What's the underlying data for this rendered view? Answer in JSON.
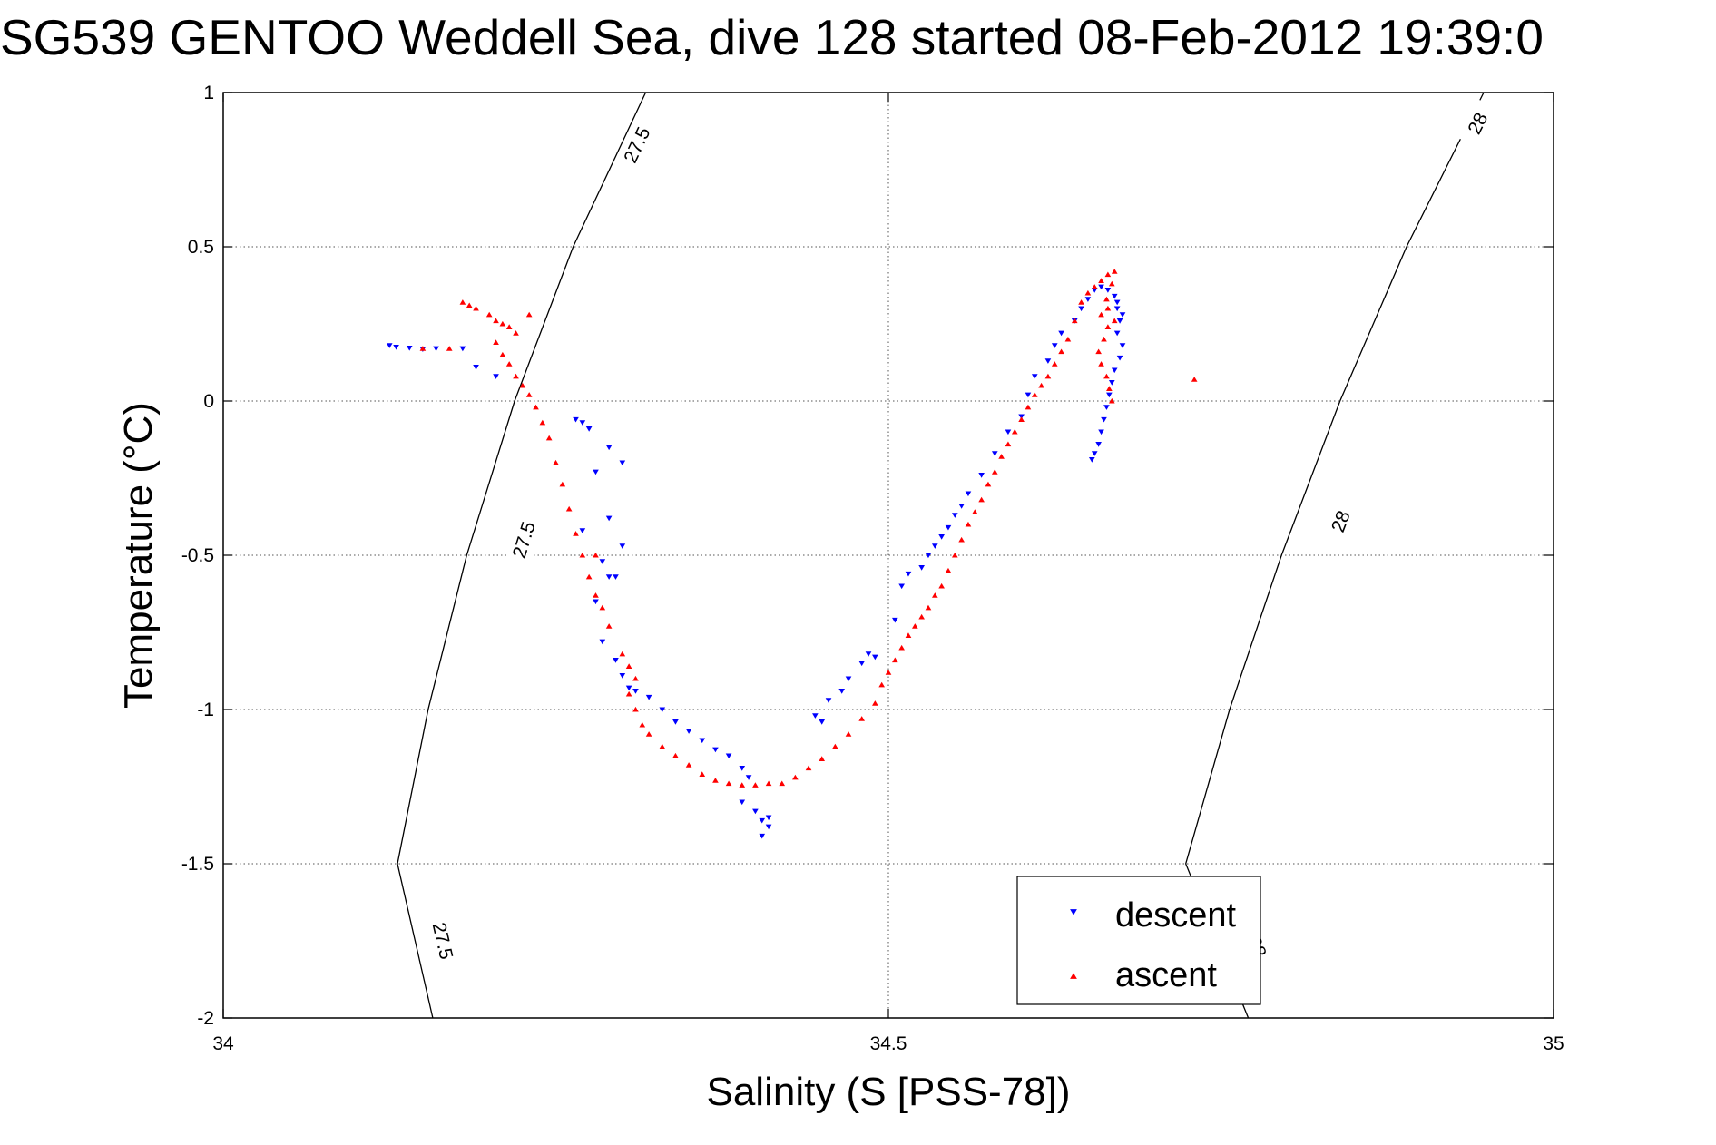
{
  "chart_data": {
    "type": "scatter",
    "title": "SG539 GENTOO Weddell Sea, dive 128 started 08-Feb-2012 19:39:0",
    "xlabel": "Salinity (S [PSS-78])",
    "ylabel": "Temperature (°C)",
    "xlim": [
      34,
      35
    ],
    "ylim": [
      -2,
      1
    ],
    "xticks": [
      34,
      34.5,
      35
    ],
    "xtick_labels": [
      "34",
      "34.5",
      "35"
    ],
    "yticks": [
      1,
      0.5,
      0,
      -0.5,
      -1,
      -1.5,
      -2
    ],
    "ytick_labels": [
      "1",
      "0.5",
      "0",
      "-0.5",
      "-1",
      "-1.5",
      "-2"
    ],
    "grid": true,
    "legend_position": "bottom-right",
    "series": [
      {
        "name": "descent",
        "color": "#0000ff",
        "marker": "triangle-down",
        "points": [
          [
            34.125,
            0.18
          ],
          [
            34.13,
            0.175
          ],
          [
            34.14,
            0.172
          ],
          [
            34.15,
            0.168
          ],
          [
            34.16,
            0.17
          ],
          [
            34.18,
            0.17
          ],
          [
            34.19,
            0.11
          ],
          [
            34.205,
            0.08
          ],
          [
            34.265,
            -0.06
          ],
          [
            34.27,
            -0.07
          ],
          [
            34.275,
            -0.09
          ],
          [
            34.29,
            -0.15
          ],
          [
            34.3,
            -0.2
          ],
          [
            34.28,
            -0.23
          ],
          [
            34.27,
            -0.42
          ],
          [
            34.29,
            -0.38
          ],
          [
            34.3,
            -0.47
          ],
          [
            34.285,
            -0.52
          ],
          [
            34.29,
            -0.57
          ],
          [
            34.28,
            -0.65
          ],
          [
            34.295,
            -0.57
          ],
          [
            34.285,
            -0.78
          ],
          [
            34.295,
            -0.84
          ],
          [
            34.3,
            -0.89
          ],
          [
            34.305,
            -0.93
          ],
          [
            34.31,
            -0.94
          ],
          [
            34.32,
            -0.96
          ],
          [
            34.33,
            -1.0
          ],
          [
            34.34,
            -1.04
          ],
          [
            34.35,
            -1.07
          ],
          [
            34.36,
            -1.1
          ],
          [
            34.37,
            -1.13
          ],
          [
            34.38,
            -1.15
          ],
          [
            34.39,
            -1.19
          ],
          [
            34.395,
            -1.22
          ],
          [
            34.39,
            -1.3
          ],
          [
            34.4,
            -1.33
          ],
          [
            34.405,
            -1.36
          ],
          [
            34.41,
            -1.38
          ],
          [
            34.405,
            -1.41
          ],
          [
            34.41,
            -1.35
          ],
          [
            34.445,
            -1.02
          ],
          [
            34.45,
            -1.04
          ],
          [
            34.455,
            -0.97
          ],
          [
            34.465,
            -0.94
          ],
          [
            34.47,
            -0.9
          ],
          [
            34.48,
            -0.85
          ],
          [
            34.485,
            -0.82
          ],
          [
            34.49,
            -0.83
          ],
          [
            34.505,
            -0.71
          ],
          [
            34.51,
            -0.6
          ],
          [
            34.515,
            -0.56
          ],
          [
            34.525,
            -0.54
          ],
          [
            34.53,
            -0.5
          ],
          [
            34.535,
            -0.47
          ],
          [
            34.54,
            -0.44
          ],
          [
            34.545,
            -0.41
          ],
          [
            34.55,
            -0.37
          ],
          [
            34.555,
            -0.34
          ],
          [
            34.56,
            -0.3
          ],
          [
            34.57,
            -0.24
          ],
          [
            34.58,
            -0.17
          ],
          [
            34.59,
            -0.1
          ],
          [
            34.6,
            -0.05
          ],
          [
            34.605,
            0.02
          ],
          [
            34.61,
            0.08
          ],
          [
            34.62,
            0.13
          ],
          [
            34.625,
            0.18
          ],
          [
            34.63,
            0.22
          ],
          [
            34.64,
            0.26
          ],
          [
            34.645,
            0.3
          ],
          [
            34.65,
            0.33
          ],
          [
            34.655,
            0.36
          ],
          [
            34.66,
            0.37
          ],
          [
            34.665,
            0.36
          ],
          [
            34.67,
            0.34
          ],
          [
            34.672,
            0.3
          ],
          [
            34.674,
            0.26
          ],
          [
            34.672,
            0.22
          ],
          [
            34.676,
            0.18
          ],
          [
            34.674,
            0.14
          ],
          [
            34.67,
            0.1
          ],
          [
            34.668,
            0.06
          ],
          [
            34.666,
            0.02
          ],
          [
            34.664,
            -0.02
          ],
          [
            34.662,
            -0.06
          ],
          [
            34.66,
            -0.1
          ],
          [
            34.658,
            -0.14
          ],
          [
            34.655,
            -0.17
          ],
          [
            34.653,
            -0.19
          ],
          [
            34.672,
            0.32
          ],
          [
            34.676,
            0.28
          ]
        ]
      },
      {
        "name": "ascent",
        "color": "#ff0000",
        "marker": "triangle-up",
        "points": [
          [
            34.15,
            0.17
          ],
          [
            34.17,
            0.17
          ],
          [
            34.18,
            0.32
          ],
          [
            34.185,
            0.31
          ],
          [
            34.19,
            0.3
          ],
          [
            34.2,
            0.28
          ],
          [
            34.205,
            0.26
          ],
          [
            34.21,
            0.25
          ],
          [
            34.215,
            0.24
          ],
          [
            34.22,
            0.22
          ],
          [
            34.23,
            0.28
          ],
          [
            34.205,
            0.19
          ],
          [
            34.21,
            0.15
          ],
          [
            34.215,
            0.12
          ],
          [
            34.22,
            0.08
          ],
          [
            34.225,
            0.05
          ],
          [
            34.23,
            0.02
          ],
          [
            34.235,
            -0.02
          ],
          [
            34.24,
            -0.07
          ],
          [
            34.245,
            -0.12
          ],
          [
            34.25,
            -0.2
          ],
          [
            34.255,
            -0.27
          ],
          [
            34.26,
            -0.35
          ],
          [
            34.265,
            -0.43
          ],
          [
            34.27,
            -0.5
          ],
          [
            34.28,
            -0.5
          ],
          [
            34.275,
            -0.57
          ],
          [
            34.28,
            -0.63
          ],
          [
            34.285,
            -0.67
          ],
          [
            34.29,
            -0.73
          ],
          [
            34.3,
            -0.82
          ],
          [
            34.305,
            -0.86
          ],
          [
            34.31,
            -0.9
          ],
          [
            34.305,
            -0.95
          ],
          [
            34.31,
            -1.0
          ],
          [
            34.315,
            -1.05
          ],
          [
            34.32,
            -1.08
          ],
          [
            34.33,
            -1.12
          ],
          [
            34.34,
            -1.15
          ],
          [
            34.35,
            -1.18
          ],
          [
            34.36,
            -1.21
          ],
          [
            34.37,
            -1.23
          ],
          [
            34.38,
            -1.24
          ],
          [
            34.39,
            -1.245
          ],
          [
            34.4,
            -1.245
          ],
          [
            34.41,
            -1.24
          ],
          [
            34.42,
            -1.24
          ],
          [
            34.43,
            -1.22
          ],
          [
            34.44,
            -1.19
          ],
          [
            34.45,
            -1.16
          ],
          [
            34.46,
            -1.12
          ],
          [
            34.47,
            -1.08
          ],
          [
            34.48,
            -1.03
          ],
          [
            34.49,
            -0.98
          ],
          [
            34.495,
            -0.92
          ],
          [
            34.5,
            -0.88
          ],
          [
            34.505,
            -0.84
          ],
          [
            34.51,
            -0.8
          ],
          [
            34.515,
            -0.76
          ],
          [
            34.52,
            -0.73
          ],
          [
            34.525,
            -0.7
          ],
          [
            34.53,
            -0.67
          ],
          [
            34.535,
            -0.63
          ],
          [
            34.54,
            -0.6
          ],
          [
            34.545,
            -0.55
          ],
          [
            34.55,
            -0.5
          ],
          [
            34.555,
            -0.45
          ],
          [
            34.56,
            -0.4
          ],
          [
            34.565,
            -0.36
          ],
          [
            34.57,
            -0.32
          ],
          [
            34.575,
            -0.27
          ],
          [
            34.58,
            -0.23
          ],
          [
            34.585,
            -0.18
          ],
          [
            34.59,
            -0.14
          ],
          [
            34.595,
            -0.1
          ],
          [
            34.6,
            -0.06
          ],
          [
            34.605,
            -0.02
          ],
          [
            34.61,
            0.02
          ],
          [
            34.615,
            0.05
          ],
          [
            34.62,
            0.08
          ],
          [
            34.625,
            0.12
          ],
          [
            34.63,
            0.16
          ],
          [
            34.635,
            0.2
          ],
          [
            34.64,
            0.26
          ],
          [
            34.645,
            0.32
          ],
          [
            34.65,
            0.35
          ],
          [
            34.655,
            0.37
          ],
          [
            34.66,
            0.39
          ],
          [
            34.665,
            0.41
          ],
          [
            34.67,
            0.42
          ],
          [
            34.668,
            0.38
          ],
          [
            34.664,
            0.33
          ],
          [
            34.66,
            0.28
          ],
          [
            34.665,
            0.24
          ],
          [
            34.662,
            0.2
          ],
          [
            34.658,
            0.16
          ],
          [
            34.66,
            0.12
          ],
          [
            34.664,
            0.08
          ],
          [
            34.666,
            0.04
          ],
          [
            34.668,
            0.0
          ],
          [
            34.665,
            0.3
          ],
          [
            34.67,
            0.26
          ],
          [
            34.73,
            0.07
          ]
        ]
      }
    ],
    "isopycnals": [
      {
        "label": "27.5",
        "points": [
          [
            34.3175,
            1.0
          ],
          [
            34.263,
            0.5
          ],
          [
            34.219,
            0.0
          ],
          [
            34.183,
            -0.5
          ],
          [
            34.154,
            -1.0
          ],
          [
            34.131,
            -1.5
          ],
          [
            34.1575,
            -2.0
          ]
        ],
        "label_at": [
          [
            34.311,
            0.83
          ],
          [
            34.226,
            -0.45
          ],
          [
            34.165,
            -1.75
          ]
        ]
      },
      {
        "label": "28",
        "points": [
          [
            34.9475,
            1.0
          ],
          [
            34.8895,
            0.5
          ],
          [
            34.8395,
            0.0
          ],
          [
            34.7955,
            -0.5
          ],
          [
            34.7565,
            -1.0
          ],
          [
            34.7235,
            -1.5
          ],
          [
            34.7705,
            -2.0
          ]
        ],
        "label_at": [
          [
            34.943,
            0.9
          ],
          [
            34.84,
            -0.39
          ],
          [
            34.777,
            -1.77
          ]
        ]
      }
    ]
  }
}
